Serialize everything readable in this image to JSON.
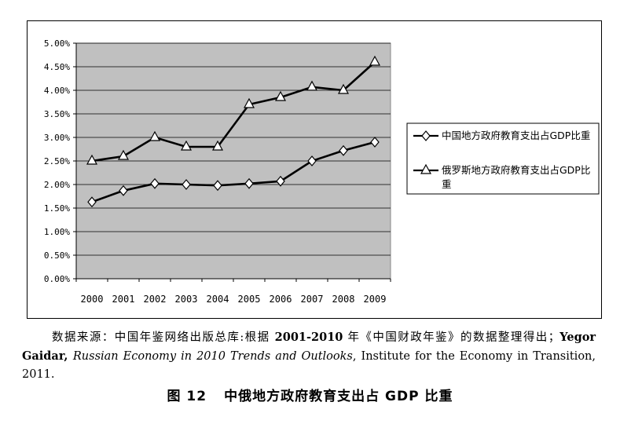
{
  "chart_data": {
    "type": "line",
    "categories": [
      "2000",
      "2001",
      "2002",
      "2003",
      "2004",
      "2005",
      "2006",
      "2007",
      "2008",
      "2009"
    ],
    "series": [
      {
        "name": "中国地方政府教育支出占GDP比重",
        "marker": "diamond",
        "values": [
          1.63,
          1.87,
          2.02,
          2.0,
          1.98,
          2.02,
          2.07,
          2.5,
          2.72,
          2.9
        ]
      },
      {
        "name": "俄罗斯地方政府教育支出占GDP比重",
        "marker": "triangle",
        "values": [
          2.5,
          2.6,
          3.0,
          2.8,
          2.8,
          3.7,
          3.85,
          4.07,
          4.0,
          4.6
        ]
      }
    ],
    "ylim": [
      0,
      5
    ],
    "yticks": [
      "0.00%",
      "0.50%",
      "1.00%",
      "1.50%",
      "2.00%",
      "2.50%",
      "3.00%",
      "3.50%",
      "4.00%",
      "4.50%",
      "5.00%"
    ],
    "grid": true,
    "legend_position": "right",
    "plot_background": "#c0c0c0",
    "line_color": "#000000"
  },
  "source_note": {
    "lead": "数据来源：中国年鉴网络出版总库:根据 ",
    "range": "2001-2010",
    "mid": " 年《中国财政年鉴》的数据整理得出；",
    "author": "Yegor Gaidar, ",
    "work": "Russian Economy in 2010 Trends and Outlooks",
    "tail": ", Institute for the Economy in Transition, 2011."
  },
  "caption": {
    "number": "图 12",
    "title": "中俄地方政府教育支出占 GDP 比重"
  }
}
